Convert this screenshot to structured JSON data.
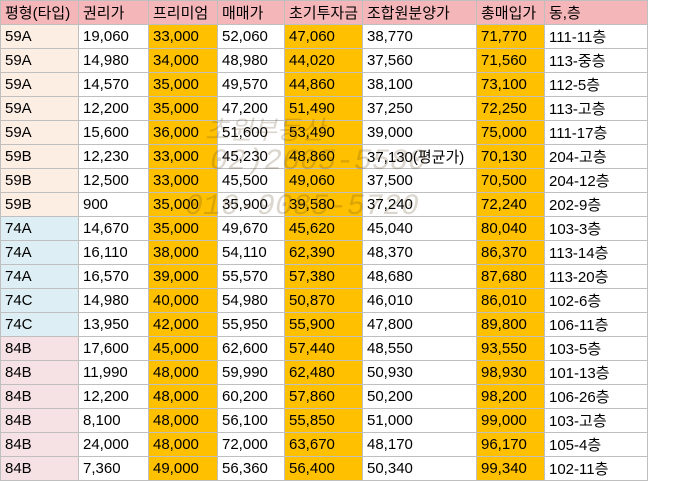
{
  "header": {
    "type": "평형(타입)",
    "right": "권리가",
    "premium": "프리미엄",
    "sale": "매매가",
    "initial": "초기투자금",
    "union": "조합원분양가",
    "total": "총매입가",
    "unit": "동,층"
  },
  "rows": [
    {
      "type": "59A",
      "right": "19,060",
      "premium": "33,000",
      "sale": "52,060",
      "initial": "47,060",
      "union": "38,770",
      "total": "71,770",
      "unit": "111-11층"
    },
    {
      "type": "59A",
      "right": "14,980",
      "premium": "34,000",
      "sale": "48,980",
      "initial": "44,020",
      "union": "37,560",
      "total": "71,560",
      "unit": "113-중층"
    },
    {
      "type": "59A",
      "right": "14,570",
      "premium": "35,000",
      "sale": "49,570",
      "initial": "44,860",
      "union": "38,100",
      "total": "73,100",
      "unit": "112-5층"
    },
    {
      "type": "59A",
      "right": "12,200",
      "premium": "35,000",
      "sale": "47,200",
      "initial": "51,490",
      "union": "37,250",
      "total": "72,250",
      "unit": "113-고층"
    },
    {
      "type": "59A",
      "right": "15,600",
      "premium": "36,000",
      "sale": "51,600",
      "initial": "53,490",
      "union": "39,000",
      "total": "75,000",
      "unit": "111-17층"
    },
    {
      "type": "59B",
      "right": "12,230",
      "premium": "33,000",
      "sale": "45,230",
      "initial": "48,860",
      "union": "37,130(평균가)",
      "total": "70,130",
      "unit": "204-고층"
    },
    {
      "type": "59B",
      "right": "12,500",
      "premium": "33,000",
      "sale": "45,500",
      "initial": "49,060",
      "union": "37,500",
      "total": "70,500",
      "unit": "204-12층"
    },
    {
      "type": "59B",
      "right": "900",
      "premium": "35,000",
      "sale": "35,900",
      "initial": "39,580",
      "union": "37,240",
      "total": "72,240",
      "unit": "202-9층"
    },
    {
      "type": "74A",
      "right": "14,670",
      "premium": "35,000",
      "sale": "49,670",
      "initial": "45,620",
      "union": "45,040",
      "total": "80,040",
      "unit": "103-3층"
    },
    {
      "type": "74A",
      "right": "16,110",
      "premium": "38,000",
      "sale": "54,110",
      "initial": "62,390",
      "union": "48,370",
      "total": "86,370",
      "unit": "113-14층"
    },
    {
      "type": "74A",
      "right": "16,570",
      "premium": "39,000",
      "sale": "55,570",
      "initial": "57,380",
      "union": "48,680",
      "total": "87,680",
      "unit": "113-20층"
    },
    {
      "type": "74C",
      "right": "14,980",
      "premium": "40,000",
      "sale": "54,980",
      "initial": "50,870",
      "union": "46,010",
      "total": "86,010",
      "unit": "102-6층"
    },
    {
      "type": "74C",
      "right": "13,950",
      "premium": "42,000",
      "sale": "55,950",
      "initial": "55,900",
      "union": "47,800",
      "total": "89,800",
      "unit": "106-11층"
    },
    {
      "type": "84B",
      "right": "17,600",
      "premium": "45,000",
      "sale": "62,600",
      "initial": "57,440",
      "union": "48,550",
      "total": "93,550",
      "unit": "103-5층"
    },
    {
      "type": "84B",
      "right": "11,990",
      "premium": "48,000",
      "sale": "59,990",
      "initial": "62,480",
      "union": "50,930",
      "total": "98,930",
      "unit": "101-13층"
    },
    {
      "type": "84B",
      "right": "12,200",
      "premium": "48,000",
      "sale": "60,200",
      "initial": "57,860",
      "union": "50,200",
      "total": "98,200",
      "unit": "106-26층"
    },
    {
      "type": "84B",
      "right": "8,100",
      "premium": "48,000",
      "sale": "56,100",
      "initial": "55,850",
      "union": "51,000",
      "total": "99,000",
      "unit": "103-고층"
    },
    {
      "type": "84B",
      "right": "24,000",
      "premium": "48,000",
      "sale": "72,000",
      "initial": "63,670",
      "union": "48,170",
      "total": "96,170",
      "unit": "105-4층"
    },
    {
      "type": "84B",
      "right": "7,360",
      "premium": "49,000",
      "sale": "56,360",
      "initial": "56,400",
      "union": "50,340",
      "total": "99,340",
      "unit": "102-11층"
    }
  ],
  "watermark": {
    "line1": "초원부동산",
    "line2": "02)2605-5580",
    "line3": "010-9085-5720"
  },
  "colors": {
    "header_bg": "#f4b6b8",
    "highlight_yellow": "#ffc000",
    "type_59_bg": "#fdeee4",
    "type_74_bg": "#ddeff4",
    "type_84_bg": "#f6e1e4",
    "grid_line": "#bfbfbf"
  }
}
